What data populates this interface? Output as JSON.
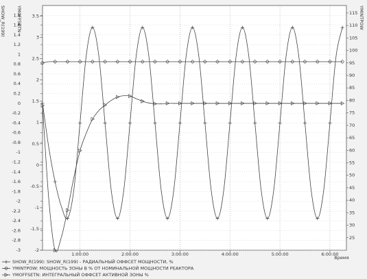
{
  "chart_data": {
    "type": "line",
    "y_label": "SHOW_R(199)",
    "y3_label": "YMOFFSETN",
    "y2_label": "YMINTPOW",
    "x_label": "Время",
    "x": [
      0.25,
      0.375,
      0.5,
      0.625,
      0.75,
      0.875,
      1,
      1.125,
      1.25,
      1.375,
      1.5,
      1.625,
      1.75,
      1.875,
      2,
      2.125,
      2.25,
      2.375,
      2.5,
      2.625,
      2.75,
      2.875,
      3,
      3.125,
      3.25,
      3.375,
      3.5,
      3.625,
      3.75,
      3.875,
      4,
      4.125,
      4.25,
      4.375,
      4.5,
      4.625,
      4.75,
      4.875,
      5,
      5.125,
      5.25,
      5.375,
      5.5,
      5.625,
      5.75,
      5.875,
      6,
      6.125,
      6.25
    ],
    "xlim": [
      0.25,
      6.33
    ],
    "xticks": [
      {
        "value": 1,
        "label": "1:00:00"
      },
      {
        "value": 2,
        "label": "2:00:00"
      },
      {
        "value": 3,
        "label": "3:00:00"
      },
      {
        "value": 4,
        "label": "4:00:00"
      },
      {
        "value": 5,
        "label": "5:00:00"
      },
      {
        "value": 6,
        "label": "6:00:00"
      }
    ],
    "ylim": [
      -3,
      2
    ],
    "yticks": [
      -3,
      -2.8,
      -2.6,
      -2.4,
      -2.2,
      -2,
      -1.8,
      -1.6,
      -1.4,
      -1.2,
      -1,
      -0.8,
      -0.6,
      -0.4,
      -0.2,
      0,
      0.2,
      0.4,
      0.6,
      0.8,
      1,
      1.2,
      1.4,
      1.6,
      1.8
    ],
    "y3lim": [
      -2,
      3.75
    ],
    "y3ticks": [
      -2,
      -1.5,
      -1,
      -0.5,
      0,
      0.5,
      1,
      1.5,
      2,
      2.5,
      3,
      3.5
    ],
    "y2lim": [
      20,
      118
    ],
    "y2ticks": [
      25,
      30,
      35,
      40,
      45,
      50,
      55,
      60,
      65,
      70,
      75,
      80,
      85,
      90,
      95,
      100,
      105,
      110,
      115
    ],
    "grid": true,
    "series": [
      {
        "name": "SHOW_R(199): SHOW_R(199) - РАДИАЛЬНЫЙ ОФФСЕТ МОЩНОСТИ, %",
        "color": "#404040",
        "marker": "plus",
        "axis": "y",
        "values": [
          0,
          -0.9,
          -1.6,
          -2.1,
          -2.35,
          -1.78,
          -0.4,
          0.98,
          1.55,
          0.98,
          -0.4,
          -1.78,
          -2.35,
          -1.78,
          -0.4,
          0.98,
          1.55,
          0.98,
          -0.4,
          -1.78,
          -2.35,
          -1.78,
          -0.4,
          0.98,
          1.55,
          0.98,
          -0.4,
          -1.78,
          -2.35,
          -1.78,
          -0.4,
          0.98,
          1.55,
          0.98,
          -0.4,
          -1.78,
          -2.35,
          -1.78,
          -0.4,
          0.98,
          1.55,
          0.98,
          -0.4,
          -1.78,
          -2.35,
          -1.78,
          -0.4,
          0.98,
          1.55
        ]
      },
      {
        "name": "YMINTPOW: МОЩНОСТЬ ЗОНЫ В % ОТ НОМИНАЛЬНОЙ МОЩНОСТИ РЕАКТОРА",
        "color": "#404040",
        "marker": "diamond",
        "axis": "y2",
        "values": [
          95,
          95.5,
          95.5,
          95.5,
          95.5,
          95.5,
          95.5,
          95.5,
          95.5,
          95.5,
          95.5,
          95.5,
          95.5,
          95.5,
          95.5,
          95.5,
          95.5,
          95.5,
          95.5,
          95.5,
          95.5,
          95.5,
          95.5,
          95.5,
          95.5,
          95.5,
          95.5,
          95.5,
          95.5,
          95.5,
          95.5,
          95.5,
          95.5,
          95.5,
          95.5,
          95.5,
          95.5,
          95.5,
          95.5,
          95.5,
          95.5,
          95.5,
          95.5,
          95.5,
          95.5,
          95.5,
          95.5,
          95.5,
          95.5
        ]
      },
      {
        "name": "YMOFFSETN: ИНТЕГРАЛЬНЫЙ ОФФСЕТ АКТИВНОЙ ЗОНЫ %",
        "color": "#404040",
        "marker": "triangle",
        "axis": "y3",
        "values": [
          1.4,
          -0.8,
          -2,
          -1.7,
          -1.06,
          -0.3,
          0.34,
          0.75,
          1.08,
          1.28,
          1.41,
          1.52,
          1.6,
          1.63,
          1.62,
          1.56,
          1.5,
          1.46,
          1.44,
          1.44,
          1.45,
          1.45,
          1.45,
          1.45,
          1.45,
          1.45,
          1.45,
          1.45,
          1.45,
          1.45,
          1.45,
          1.45,
          1.45,
          1.45,
          1.45,
          1.45,
          1.45,
          1.45,
          1.45,
          1.45,
          1.45,
          1.45,
          1.45,
          1.45,
          1.45,
          1.45,
          1.45,
          1.45,
          1.45
        ]
      }
    ]
  }
}
